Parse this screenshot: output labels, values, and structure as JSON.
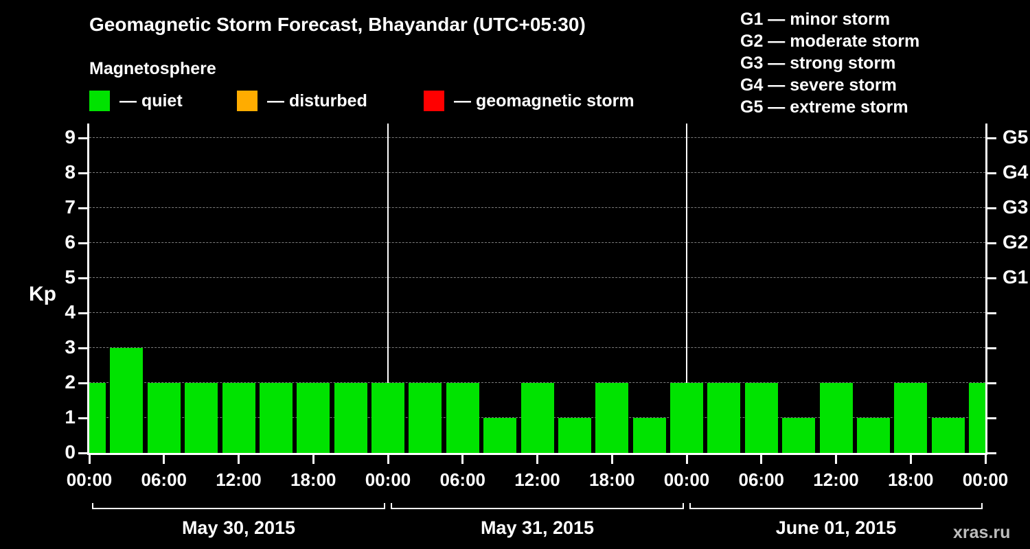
{
  "header": {
    "title": "Geomagnetic Storm Forecast, Bhayandar (UTC+05:30)",
    "subtitle": "Magnetosphere"
  },
  "legend": {
    "items": [
      {
        "key": "quiet",
        "label": "— quiet",
        "color": "#00e300"
      },
      {
        "key": "disturbed",
        "label": "— disturbed",
        "color": "#ffac00"
      },
      {
        "key": "storm",
        "label": "— geomagnetic storm",
        "color": "#ff0000"
      }
    ]
  },
  "storm_scale": {
    "items": [
      "G1 — minor storm",
      "G2 — moderate storm",
      "G3 — strong storm",
      "G4 — severe storm",
      "G5 — extreme storm"
    ]
  },
  "watermark": "xras.ru",
  "chart_data": {
    "type": "bar",
    "title": "Geomagnetic Storm Forecast, Bhayandar (UTC+05:30)",
    "ylabel": "Kp",
    "ylim": [
      0,
      9.4
    ],
    "grid": "dashed-horizontal",
    "legend_position": "top",
    "bar_color": "#00e300",
    "interval_hours": 3,
    "x_hours": [
      0,
      3,
      6,
      9,
      12,
      15,
      18,
      21,
      24,
      27,
      30,
      33,
      36,
      39,
      42,
      45,
      48,
      51,
      54,
      57,
      60,
      63,
      66,
      69,
      72
    ],
    "values": [
      2,
      3,
      2,
      2,
      2,
      2,
      2,
      2,
      2,
      2,
      2,
      1,
      2,
      1,
      2,
      1,
      2,
      2,
      2,
      1,
      2,
      1,
      2,
      1,
      2
    ],
    "y_ticks": [
      0,
      1,
      2,
      3,
      4,
      5,
      6,
      7,
      8,
      9
    ],
    "g_levels": [
      {
        "label": "G1",
        "kp": 5
      },
      {
        "label": "G2",
        "kp": 6
      },
      {
        "label": "G3",
        "kp": 7
      },
      {
        "label": "G4",
        "kp": 8
      },
      {
        "label": "G5",
        "kp": 9
      }
    ],
    "x_tick_hours": [
      0,
      6,
      12,
      18,
      24,
      30,
      36,
      42,
      48,
      54,
      60,
      66,
      72
    ],
    "x_tick_labels": [
      "00:00",
      "06:00",
      "12:00",
      "18:00",
      "00:00",
      "06:00",
      "12:00",
      "18:00",
      "00:00",
      "06:00",
      "12:00",
      "18:00",
      "00:00"
    ],
    "day_starts": [
      0,
      24,
      48
    ],
    "days": [
      {
        "label": "May 30, 2015",
        "start_hour": 0,
        "end_hour": 24
      },
      {
        "label": "May 31, 2015",
        "start_hour": 24,
        "end_hour": 48
      },
      {
        "label": "June 01, 2015",
        "start_hour": 48,
        "end_hour": 72
      }
    ]
  }
}
